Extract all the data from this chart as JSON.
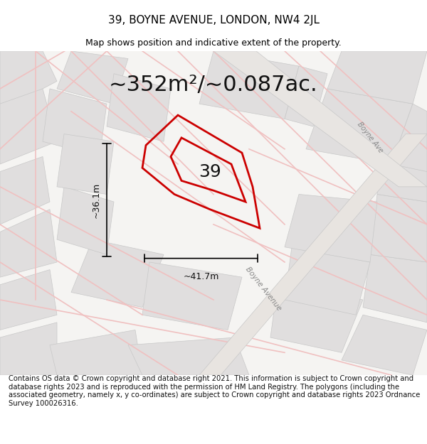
{
  "title": "39, BOYNE AVENUE, LONDON, NW4 2JL",
  "subtitle": "Map shows position and indicative extent of the property.",
  "area_text": "~352m²/~0.087ac.",
  "label_number": "39",
  "dim_width": "~41.7m",
  "dim_height": "~36.1m",
  "footer_text": "Contains OS data © Crown copyright and database right 2021. This information is subject to Crown copyright and database rights 2023 and is reproduced with the permission of HM Land Registry. The polygons (including the associated geometry, namely x, y co-ordinates) are subject to Crown copyright and database rights 2023 Ordnance Survey 100026316.",
  "bg_color": "#f0eeee",
  "map_bg": "#f5f4f2",
  "street_color_light": "#f0c0c0",
  "street_color_dark": "#c8c8c8",
  "block_color": "#e0dede",
  "plot_color": "#cc0000",
  "plot_fill": "none",
  "annotation_color": "#111111",
  "road_label_color": "#888888",
  "boyne_avenue_label": "Boyne Avenue",
  "title_fontsize": 11,
  "subtitle_fontsize": 9,
  "area_fontsize": 22,
  "label_fontsize": 18,
  "dim_fontsize": 9,
  "footer_fontsize": 7.2
}
